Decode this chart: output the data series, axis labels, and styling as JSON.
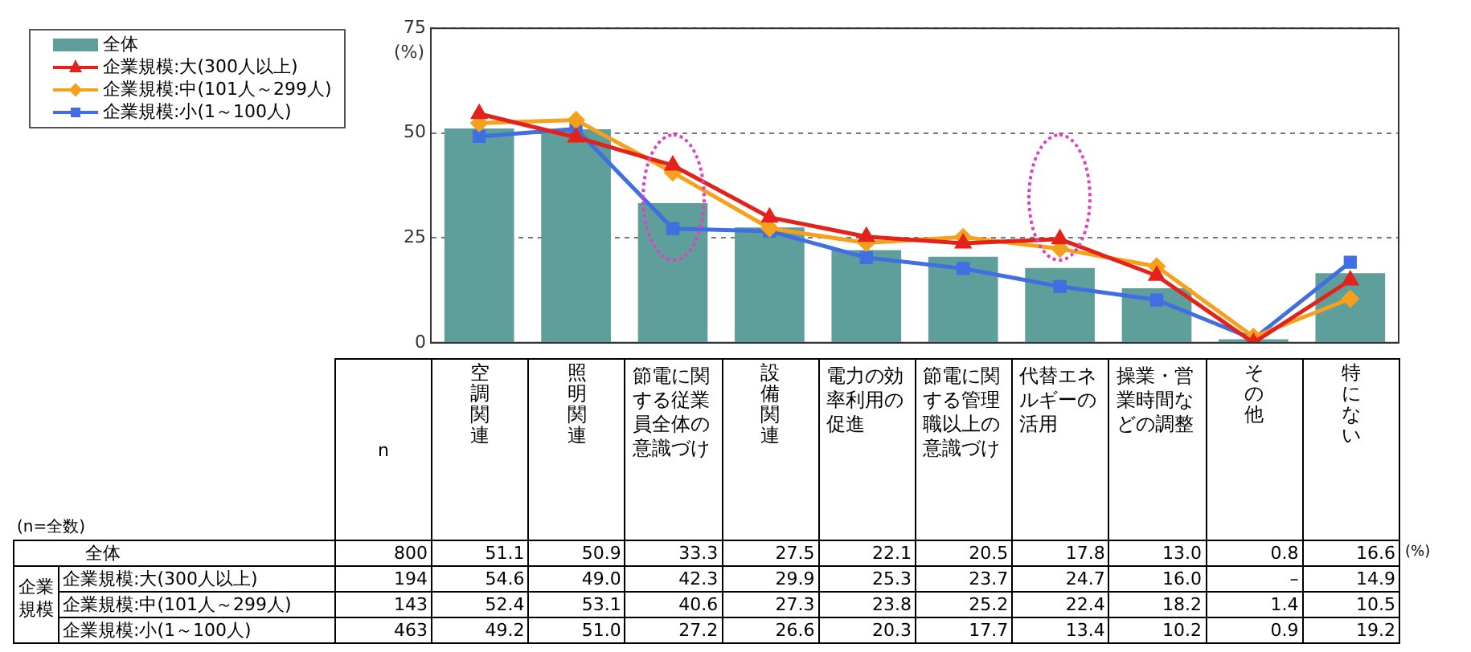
{
  "chart_data": {
    "type": "bar",
    "ylabel": "(%)",
    "categories": [
      "空調関連",
      "照明関連",
      "節電に関する従業員全体の意識づけ",
      "設備関連",
      "電力の効率利用の促進",
      "節電に関する管理職以上の意識づけ",
      "代替エネルギーの活用",
      "操業・営業時間などの調整",
      "その他",
      "特にない"
    ],
    "series": [
      {
        "name": "全体",
        "color": "#5e9f9b",
        "values": [
          51.1,
          50.9,
          33.3,
          27.5,
          22.1,
          20.5,
          17.8,
          13.0,
          0.8,
          16.6
        ],
        "value_labels": [
          "51.1",
          "50.9",
          "33.3",
          "27.5",
          "22.1",
          "20.5",
          "17.8",
          "13.0",
          "0.8",
          "16.6"
        ]
      },
      {
        "name": "企業規模:大(300人以上)",
        "type": "line",
        "marker": "triangle",
        "color": "#e3231b",
        "values": [
          54.6,
          49.0,
          42.3,
          29.9,
          25.3,
          23.7,
          24.7,
          16.0,
          0,
          14.9
        ],
        "value_labels": [
          "54.6",
          "49.0",
          "42.3",
          "29.9",
          "25.3",
          "23.7",
          "24.7",
          "16.0",
          "–",
          "14.9"
        ]
      },
      {
        "name": "企業規模:中(101人～299人)",
        "type": "line",
        "marker": "diamond",
        "color": "#f6a11c",
        "values": [
          52.4,
          53.1,
          40.6,
          27.3,
          23.8,
          25.2,
          22.4,
          18.2,
          1.4,
          10.5
        ],
        "value_labels": [
          "52.4",
          "53.1",
          "40.6",
          "27.3",
          "23.8",
          "25.2",
          "22.4",
          "18.2",
          "1.4",
          "10.5"
        ]
      },
      {
        "name": "企業規模:小(1～100人)",
        "type": "line",
        "marker": "square",
        "color": "#3f6fe0",
        "values": [
          49.2,
          51.0,
          27.2,
          26.6,
          20.3,
          17.7,
          13.4,
          10.2,
          0.9,
          19.2
        ],
        "value_labels": [
          "49.2",
          "51.0",
          "27.2",
          "26.6",
          "20.3",
          "17.7",
          "13.4",
          "10.2",
          "0.9",
          "19.2"
        ]
      }
    ],
    "ylim": [
      0,
      75
    ],
    "yticks": [
      0,
      25,
      50,
      75
    ],
    "grid": "y",
    "line_style": "solid",
    "legend": "top left",
    "data_labels": true,
    "annotations": [
      "(n=全数)",
      "n",
      "800",
      "194",
      "143",
      "463",
      "企業規模",
      "(%)"
    ]
  }
}
